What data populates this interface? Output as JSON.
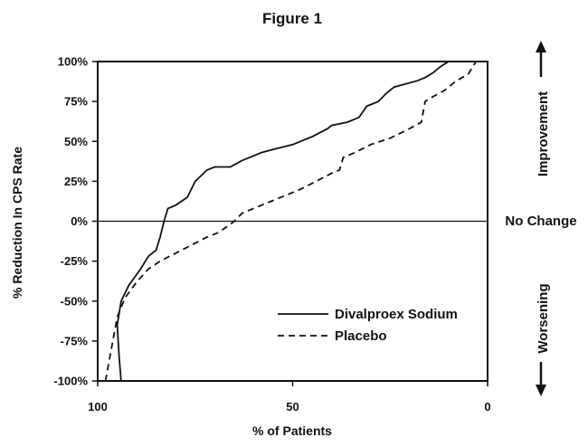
{
  "chart_data": {
    "type": "line",
    "title": "Figure 1",
    "xlabel": "% of Patients",
    "ylabel": "% Reduction In CPS Rate",
    "xlim": [
      100,
      0
    ],
    "ylim": [
      -100,
      100
    ],
    "x_ticks": [
      "100",
      "50",
      "0"
    ],
    "y_ticks": [
      "100%",
      "75%",
      "50%",
      "25%",
      "0%",
      "-25%",
      "-50%",
      "-75%",
      "-100%"
    ],
    "grid": false,
    "legend_position": "bottom-right",
    "reference_line": {
      "y": 0,
      "label": "No Change"
    },
    "side_labels": {
      "top": "Improvement",
      "bottom": "Worsening"
    },
    "series": [
      {
        "name": "Divalproex Sodium",
        "style": "solid",
        "x": [
          94,
          94.5,
          95,
          94,
          92,
          89,
          87,
          85,
          84,
          83,
          82,
          80,
          77,
          75,
          72,
          70,
          66,
          63,
          61,
          58,
          55,
          50,
          45,
          41,
          40,
          36,
          33,
          31,
          28,
          26,
          24,
          21,
          18,
          16,
          14,
          12,
          10
        ],
        "y": [
          -100,
          -85,
          -65,
          -50,
          -40,
          -30,
          -22,
          -18,
          -10,
          0,
          8,
          10,
          15,
          25,
          32,
          34,
          34,
          38,
          40,
          43,
          45,
          48,
          53,
          58,
          60,
          62,
          65,
          72,
          75,
          80,
          84,
          86,
          88,
          90,
          93,
          97,
          100
        ]
      },
      {
        "name": "Placebo",
        "style": "dashed",
        "x": [
          98,
          96.5,
          95,
          93,
          90,
          87,
          84,
          80,
          76,
          72,
          69,
          66,
          65,
          63,
          58,
          53,
          48,
          44,
          40,
          38,
          37,
          34,
          30,
          25,
          20,
          17,
          16,
          14,
          11,
          8,
          5,
          4,
          3
        ],
        "y": [
          -100,
          -80,
          -60,
          -48,
          -38,
          -30,
          -25,
          -20,
          -15,
          -10,
          -7,
          -2,
          0,
          5,
          10,
          15,
          20,
          25,
          30,
          32,
          40,
          43,
          48,
          52,
          58,
          62,
          75,
          78,
          82,
          88,
          92,
          96,
          100
        ]
      }
    ]
  }
}
